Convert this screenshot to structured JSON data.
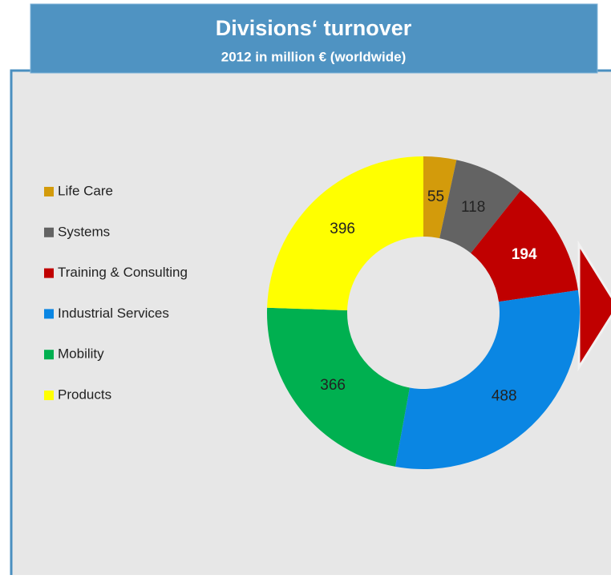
{
  "chart_data": {
    "type": "donut",
    "title": "Divisions‘ turnover",
    "subtitle": "2012 in million  € (worldwide)",
    "categories": [
      "Life Care",
      "Systems",
      "Training & Consulting",
      "Industrial Services",
      "Mobility",
      "Products"
    ],
    "values": [
      55,
      118,
      194,
      488,
      366,
      396
    ],
    "colors": [
      "#d39b0b",
      "#636363",
      "#c00000",
      "#0a86e3",
      "#00b050",
      "#ffff00"
    ],
    "label_colors": [
      "#222222",
      "#222222",
      "#ffffff",
      "#222222",
      "#222222",
      "#222222"
    ],
    "legend": "left"
  }
}
